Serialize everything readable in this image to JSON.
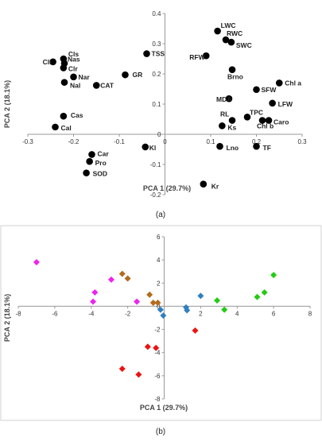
{
  "captions": {
    "a": "(a)",
    "b": "(b)"
  },
  "chart_data": [
    {
      "type": "scatter",
      "xlabel": "PCA 1 (29.7%)",
      "ylabel": "PCA 2 (18.1%)",
      "xlim": [
        -0.3,
        0.3
      ],
      "ylim": [
        -0.2,
        0.4
      ],
      "xticks": [
        "-0.3",
        "-0.2",
        "-0.1",
        "0",
        "0.1",
        "0.2",
        "0.3"
      ],
      "yticks": [
        "-0.2",
        "-0.1",
        "0",
        "0.1",
        "0.2",
        "0.3",
        "0.4"
      ],
      "points": [
        {
          "label": "Cll",
          "x": -0.245,
          "y": 0.24
        },
        {
          "label": "Cls",
          "x": -0.222,
          "y": 0.25
        },
        {
          "label": "Nas",
          "x": -0.22,
          "y": 0.235
        },
        {
          "label": "Clr",
          "x": -0.222,
          "y": 0.22
        },
        {
          "label": "Nar",
          "x": -0.2,
          "y": 0.19
        },
        {
          "label": "Nal",
          "x": -0.22,
          "y": 0.172
        },
        {
          "label": "CAT",
          "x": -0.15,
          "y": 0.162
        },
        {
          "label": "GR",
          "x": -0.087,
          "y": 0.197
        },
        {
          "label": "TSS",
          "x": -0.04,
          "y": 0.267
        },
        {
          "label": "Cas",
          "x": -0.222,
          "y": 0.06
        },
        {
          "label": "Cal",
          "x": -0.24,
          "y": 0.024
        },
        {
          "label": "Car",
          "x": -0.16,
          "y": -0.067
        },
        {
          "label": "Pro",
          "x": -0.165,
          "y": -0.09
        },
        {
          "label": "SOD",
          "x": -0.172,
          "y": -0.128
        },
        {
          "label": "Kl",
          "x": -0.043,
          "y": -0.042
        },
        {
          "label": "LWC",
          "x": 0.115,
          "y": 0.342
        },
        {
          "label": "RWC",
          "x": 0.133,
          "y": 0.313
        },
        {
          "label": "SWC",
          "x": 0.145,
          "y": 0.305
        },
        {
          "label": "RFW",
          "x": 0.09,
          "y": 0.26
        },
        {
          "label": "Brno",
          "x": 0.147,
          "y": 0.214
        },
        {
          "label": "Chl a",
          "x": 0.25,
          "y": 0.17
        },
        {
          "label": "SFW",
          "x": 0.2,
          "y": 0.148
        },
        {
          "label": "MDA",
          "x": 0.14,
          "y": 0.118
        },
        {
          "label": "LFW",
          "x": 0.235,
          "y": 0.103
        },
        {
          "label": "TPC",
          "x": 0.18,
          "y": 0.057
        },
        {
          "label": "RL",
          "x": 0.147,
          "y": 0.046
        },
        {
          "label": "Chl b",
          "x": 0.213,
          "y": 0.046
        },
        {
          "label": "Caro",
          "x": 0.227,
          "y": 0.046
        },
        {
          "label": "Ks",
          "x": 0.125,
          "y": 0.028
        },
        {
          "label": "Lno",
          "x": 0.12,
          "y": -0.04
        },
        {
          "label": "TF",
          "x": 0.2,
          "y": -0.04
        },
        {
          "label": "Kr",
          "x": 0.084,
          "y": -0.165
        }
      ]
    },
    {
      "type": "scatter",
      "xlabel": "PCA 1 (29.7%)",
      "ylabel": "PCA 2 (18.1%)",
      "xlim": [
        -8,
        8
      ],
      "ylim": [
        -8,
        6
      ],
      "xticks": [
        "-8",
        "-6",
        "-4",
        "-2",
        "0",
        "2",
        "4",
        "6",
        "8"
      ],
      "yticks": [
        "-8",
        "-6",
        "-4",
        "-2",
        "0",
        "2",
        "4",
        "6"
      ],
      "series": [
        {
          "color": "#ee22ee",
          "points": [
            [
              -7.0,
              3.8
            ],
            [
              -3.8,
              1.2
            ],
            [
              -3.9,
              0.4
            ],
            [
              -2.9,
              2.3
            ],
            [
              -1.5,
              0.4
            ]
          ]
        },
        {
          "color": "#b36b1d",
          "points": [
            [
              -2.3,
              2.8
            ],
            [
              -2.0,
              2.4
            ],
            [
              -0.8,
              1.0
            ],
            [
              -0.6,
              0.3
            ],
            [
              -0.35,
              0.3
            ]
          ]
        },
        {
          "color": "#2f7fc1",
          "points": [
            [
              -0.2,
              -0.3
            ],
            [
              -0.05,
              -0.8
            ],
            [
              1.2,
              -0.1
            ],
            [
              1.25,
              -0.35
            ],
            [
              2.0,
              0.9
            ]
          ]
        },
        {
          "color": "#22cc11",
          "points": [
            [
              2.9,
              0.5
            ],
            [
              3.3,
              -0.3
            ],
            [
              5.1,
              0.8
            ],
            [
              5.5,
              1.2
            ],
            [
              6.0,
              2.7
            ]
          ]
        },
        {
          "color": "#ee1111",
          "points": [
            [
              -0.9,
              -3.5
            ],
            [
              -0.45,
              -3.6
            ],
            [
              1.7,
              -2.1
            ],
            [
              -2.3,
              -5.4
            ],
            [
              -1.4,
              -5.9
            ]
          ]
        }
      ]
    }
  ]
}
